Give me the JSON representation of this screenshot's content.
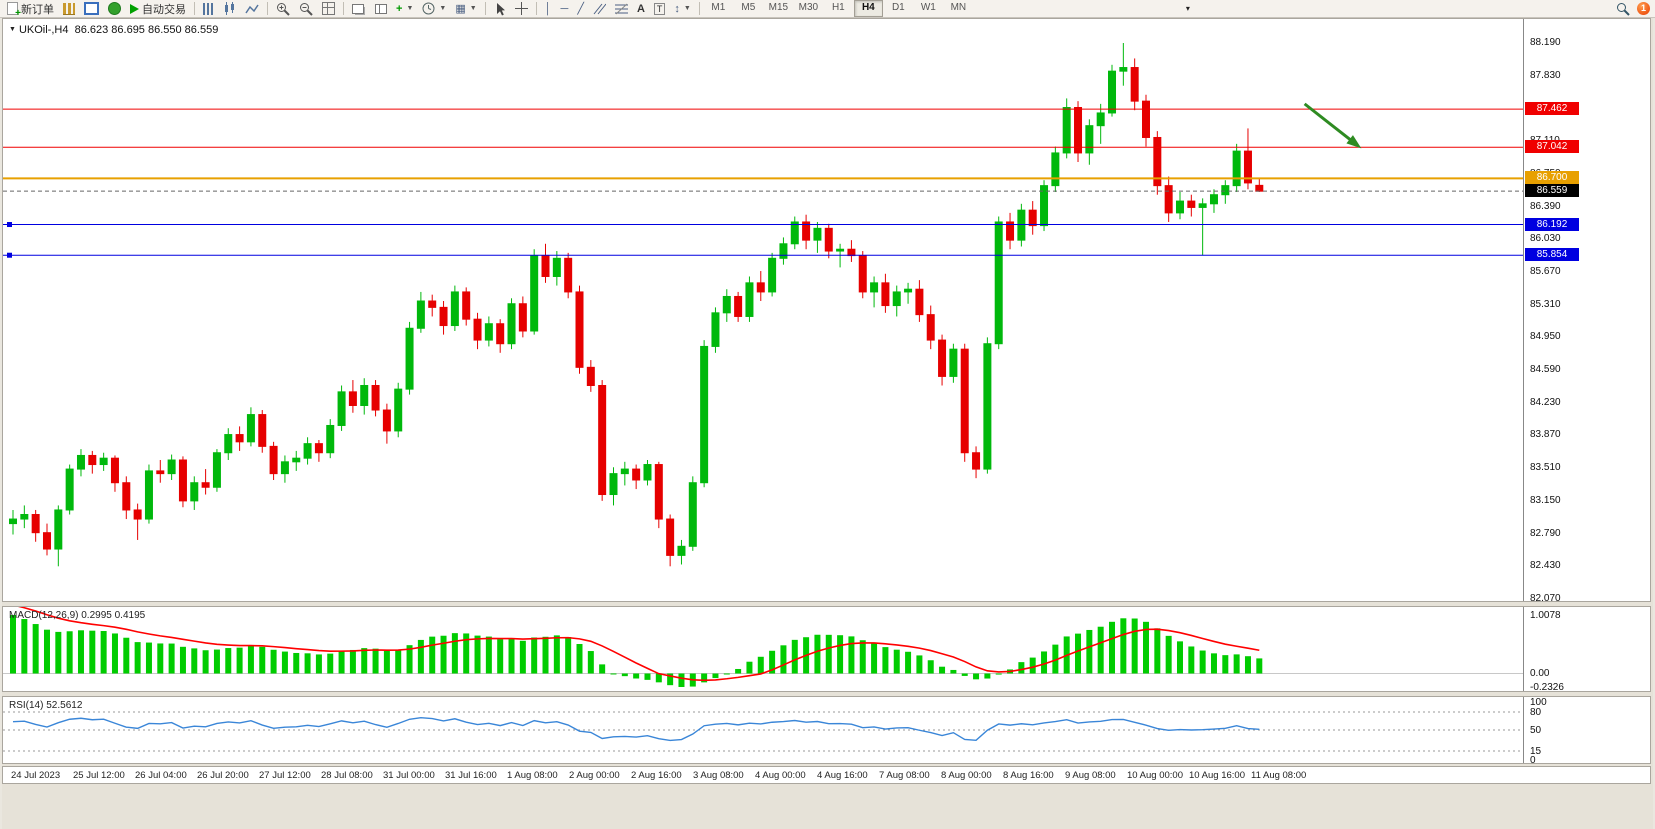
{
  "toolbar": {
    "new_order_label": "新订单",
    "autotrade_label": "自动交易",
    "timeframes": [
      "M1",
      "M5",
      "M15",
      "M30",
      "H1",
      "H4",
      "D1",
      "W1",
      "MN"
    ],
    "active_timeframe": "H4",
    "notification_count": "1"
  },
  "chart_title": {
    "symbol": "UKOil-,H4",
    "ohlc": "86.623 86.695 86.550 86.559"
  },
  "chart_data": {
    "type": "candlestick",
    "symbol": "UKOil-",
    "period": "H4",
    "ylim": [
      82.07,
      88.19
    ],
    "y_ticks": [
      "88.190",
      "87.830",
      "87.470",
      "87.110",
      "86.750",
      "86.390",
      "86.030",
      "85.670",
      "85.310",
      "84.950",
      "84.590",
      "84.230",
      "83.870",
      "83.510",
      "83.150",
      "82.790",
      "82.430",
      "82.070"
    ],
    "x_labels": [
      "24 Jul 2023",
      "25 Jul 12:00",
      "26 Jul 04:00",
      "26 Jul 20:00",
      "27 Jul 12:00",
      "28 Jul 08:00",
      "31 Jul 00:00",
      "31 Jul 16:00",
      "1 Aug 08:00",
      "2 Aug 00:00",
      "2 Aug 16:00",
      "3 Aug 08:00",
      "4 Aug 00:00",
      "4 Aug 16:00",
      "7 Aug 08:00",
      "8 Aug 00:00",
      "8 Aug 16:00",
      "9 Aug 08:00",
      "10 Aug 00:00",
      "10 Aug 16:00",
      "11 Aug 08:00"
    ],
    "colors": {
      "up": "#00B80C",
      "down": "#E60000",
      "hist": "#00CC00",
      "signal": "#FF0000",
      "rsi": "#3A86D8"
    },
    "candles": [
      [
        82.9,
        83.05,
        82.78,
        82.95
      ],
      [
        82.95,
        83.1,
        82.85,
        83.0
      ],
      [
        83.0,
        83.05,
        82.7,
        82.8
      ],
      [
        82.8,
        82.9,
        82.55,
        82.62
      ],
      [
        82.62,
        83.1,
        82.43,
        83.05
      ],
      [
        83.05,
        83.55,
        83.0,
        83.5
      ],
      [
        83.5,
        83.72,
        83.42,
        83.65
      ],
      [
        83.65,
        83.7,
        83.45,
        83.55
      ],
      [
        83.55,
        83.68,
        83.48,
        83.62
      ],
      [
        83.62,
        83.65,
        83.25,
        83.35
      ],
      [
        83.35,
        83.42,
        82.95,
        83.05
      ],
      [
        83.05,
        83.12,
        82.72,
        82.95
      ],
      [
        82.95,
        83.55,
        82.9,
        83.48
      ],
      [
        83.48,
        83.6,
        83.35,
        83.45
      ],
      [
        83.45,
        83.66,
        83.38,
        83.6
      ],
      [
        83.6,
        83.64,
        83.08,
        83.15
      ],
      [
        83.15,
        83.42,
        83.05,
        83.35
      ],
      [
        83.35,
        83.5,
        83.22,
        83.3
      ],
      [
        83.3,
        83.72,
        83.25,
        83.68
      ],
      [
        83.68,
        83.95,
        83.6,
        83.88
      ],
      [
        83.88,
        83.97,
        83.7,
        83.8
      ],
      [
        83.8,
        84.18,
        83.75,
        84.1
      ],
      [
        84.1,
        84.15,
        83.68,
        83.75
      ],
      [
        83.75,
        83.8,
        83.38,
        83.45
      ],
      [
        83.45,
        83.65,
        83.35,
        83.58
      ],
      [
        83.58,
        83.7,
        83.48,
        83.62
      ],
      [
        83.62,
        83.85,
        83.55,
        83.78
      ],
      [
        83.78,
        83.82,
        83.58,
        83.68
      ],
      [
        83.68,
        84.05,
        83.62,
        83.98
      ],
      [
        83.98,
        84.42,
        83.92,
        84.35
      ],
      [
        84.35,
        84.48,
        84.12,
        84.2
      ],
      [
        84.2,
        84.5,
        84.1,
        84.42
      ],
      [
        84.42,
        84.48,
        84.08,
        84.15
      ],
      [
        84.15,
        84.22,
        83.78,
        83.92
      ],
      [
        83.92,
        84.45,
        83.85,
        84.38
      ],
      [
        84.38,
        85.12,
        84.32,
        85.05
      ],
      [
        85.05,
        85.45,
        85.0,
        85.35
      ],
      [
        85.35,
        85.42,
        85.18,
        85.28
      ],
      [
        85.28,
        85.35,
        84.98,
        85.08
      ],
      [
        85.08,
        85.52,
        85.02,
        85.45
      ],
      [
        85.45,
        85.5,
        85.08,
        85.15
      ],
      [
        85.15,
        85.22,
        84.82,
        84.92
      ],
      [
        84.92,
        85.18,
        84.85,
        85.1
      ],
      [
        85.1,
        85.15,
        84.78,
        84.88
      ],
      [
        84.88,
        85.38,
        84.82,
        85.32
      ],
      [
        85.32,
        85.4,
        84.95,
        85.02
      ],
      [
        85.02,
        85.92,
        84.98,
        85.85
      ],
      [
        85.85,
        85.98,
        85.55,
        85.62
      ],
      [
        85.62,
        85.9,
        85.52,
        85.82
      ],
      [
        85.82,
        85.88,
        85.38,
        85.45
      ],
      [
        85.45,
        85.52,
        84.55,
        84.62
      ],
      [
        84.62,
        84.7,
        84.35,
        84.42
      ],
      [
        84.42,
        84.48,
        83.15,
        83.22
      ],
      [
        83.22,
        83.52,
        83.1,
        83.45
      ],
      [
        83.45,
        83.58,
        83.32,
        83.5
      ],
      [
        83.5,
        83.55,
        83.28,
        83.38
      ],
      [
        83.38,
        83.6,
        83.32,
        83.55
      ],
      [
        83.55,
        83.58,
        82.85,
        82.95
      ],
      [
        82.95,
        83.0,
        82.43,
        82.55
      ],
      [
        82.55,
        82.72,
        82.45,
        82.65
      ],
      [
        82.65,
        83.42,
        82.6,
        83.35
      ],
      [
        83.35,
        84.92,
        83.3,
        84.85
      ],
      [
        84.85,
        85.28,
        84.78,
        85.22
      ],
      [
        85.22,
        85.48,
        85.12,
        85.4
      ],
      [
        85.4,
        85.45,
        85.12,
        85.18
      ],
      [
        85.18,
        85.62,
        85.12,
        85.55
      ],
      [
        85.55,
        85.68,
        85.35,
        85.45
      ],
      [
        85.45,
        85.88,
        85.4,
        85.82
      ],
      [
        85.82,
        86.05,
        85.75,
        85.98
      ],
      [
        85.98,
        86.28,
        85.92,
        86.22
      ],
      [
        86.22,
        86.3,
        85.92,
        86.02
      ],
      [
        86.02,
        86.22,
        85.88,
        86.15
      ],
      [
        86.15,
        86.2,
        85.82,
        85.9
      ],
      [
        85.9,
        85.98,
        85.72,
        85.92
      ],
      [
        85.92,
        86.02,
        85.78,
        85.85
      ],
      [
        85.85,
        85.9,
        85.38,
        85.45
      ],
      [
        85.45,
        85.62,
        85.28,
        85.55
      ],
      [
        85.55,
        85.65,
        85.22,
        85.3
      ],
      [
        85.3,
        85.52,
        85.18,
        85.45
      ],
      [
        85.45,
        85.55,
        85.32,
        85.48
      ],
      [
        85.48,
        85.58,
        85.12,
        85.2
      ],
      [
        85.2,
        85.3,
        84.82,
        84.92
      ],
      [
        84.92,
        84.98,
        84.42,
        84.52
      ],
      [
        84.52,
        84.88,
        84.45,
        84.82
      ],
      [
        84.82,
        84.88,
        83.58,
        83.68
      ],
      [
        83.68,
        83.75,
        83.4,
        83.5
      ],
      [
        83.5,
        84.95,
        83.45,
        84.88
      ],
      [
        84.88,
        86.28,
        84.82,
        86.22
      ],
      [
        86.22,
        86.32,
        85.92,
        86.02
      ],
      [
        86.02,
        86.42,
        85.95,
        86.35
      ],
      [
        86.35,
        86.45,
        86.08,
        86.18
      ],
      [
        86.18,
        86.68,
        86.12,
        86.62
      ],
      [
        86.62,
        87.05,
        86.55,
        86.98
      ],
      [
        86.98,
        87.58,
        86.92,
        87.48
      ],
      [
        87.48,
        87.55,
        86.88,
        86.98
      ],
      [
        86.98,
        87.35,
        86.85,
        87.28
      ],
      [
        87.28,
        87.52,
        87.08,
        87.42
      ],
      [
        87.42,
        87.95,
        87.38,
        87.88
      ],
      [
        87.88,
        88.19,
        87.72,
        87.92
      ],
      [
        87.92,
        88.02,
        87.45,
        87.55
      ],
      [
        87.55,
        87.62,
        87.05,
        87.15
      ],
      [
        87.15,
        87.22,
        86.52,
        86.62
      ],
      [
        86.62,
        86.72,
        86.22,
        86.32
      ],
      [
        86.32,
        86.55,
        86.25,
        86.45
      ],
      [
        86.45,
        86.52,
        86.28,
        86.38
      ],
      [
        86.38,
        86.48,
        85.85,
        86.42
      ],
      [
        86.42,
        86.58,
        86.32,
        86.52
      ],
      [
        86.52,
        86.68,
        86.42,
        86.62
      ],
      [
        86.62,
        87.08,
        86.55,
        87.0
      ],
      [
        87.0,
        87.25,
        86.58,
        86.65
      ],
      [
        86.623,
        86.695,
        86.55,
        86.559
      ]
    ],
    "hlines": [
      {
        "price": 87.462,
        "color": "#F00000",
        "label": "87.462",
        "width": 1,
        "handle": false
      },
      {
        "price": 87.042,
        "color": "#F00000",
        "label": "87.042",
        "width": 1,
        "handle": false
      },
      {
        "price": 86.7,
        "color": "#E8A000",
        "label": "86.700",
        "width": 2,
        "handle": false
      },
      {
        "price": 86.192,
        "color": "#0000E0",
        "label": "86.192",
        "width": 1,
        "handle": true
      },
      {
        "price": 85.854,
        "color": "#0000E0",
        "label": "85.854",
        "width": 1,
        "handle": true
      }
    ],
    "current_price": {
      "value": "86.559",
      "price": 86.559
    },
    "arrow": {
      "bar1": 114,
      "price1": 87.52,
      "bar2": 118.8,
      "price2": 87.05,
      "color": "#2E8B22"
    },
    "macd": {
      "label": "MACD(12,26,9)",
      "values": "0.2995 0.4195",
      "params": [
        12,
        26,
        9
      ],
      "range": [
        -0.2326,
        1.0078
      ],
      "axis": [
        {
          "v": 1.0078,
          "t": "1.0078"
        },
        {
          "v": 0,
          "t": "0.00"
        },
        {
          "v": -0.2326,
          "t": "-0.2326"
        }
      ]
    },
    "rsi": {
      "label": "RSI(14)",
      "value": "52.5612",
      "period": 14,
      "range": [
        0,
        100
      ],
      "levels": [
        80,
        50,
        15
      ],
      "axis": [
        {
          "v": 100,
          "t": "100"
        },
        {
          "v": 80,
          "t": "80"
        },
        {
          "v": 50,
          "t": "50"
        },
        {
          "v": 15,
          "t": "15"
        },
        {
          "v": 0,
          "t": "0"
        }
      ]
    }
  }
}
